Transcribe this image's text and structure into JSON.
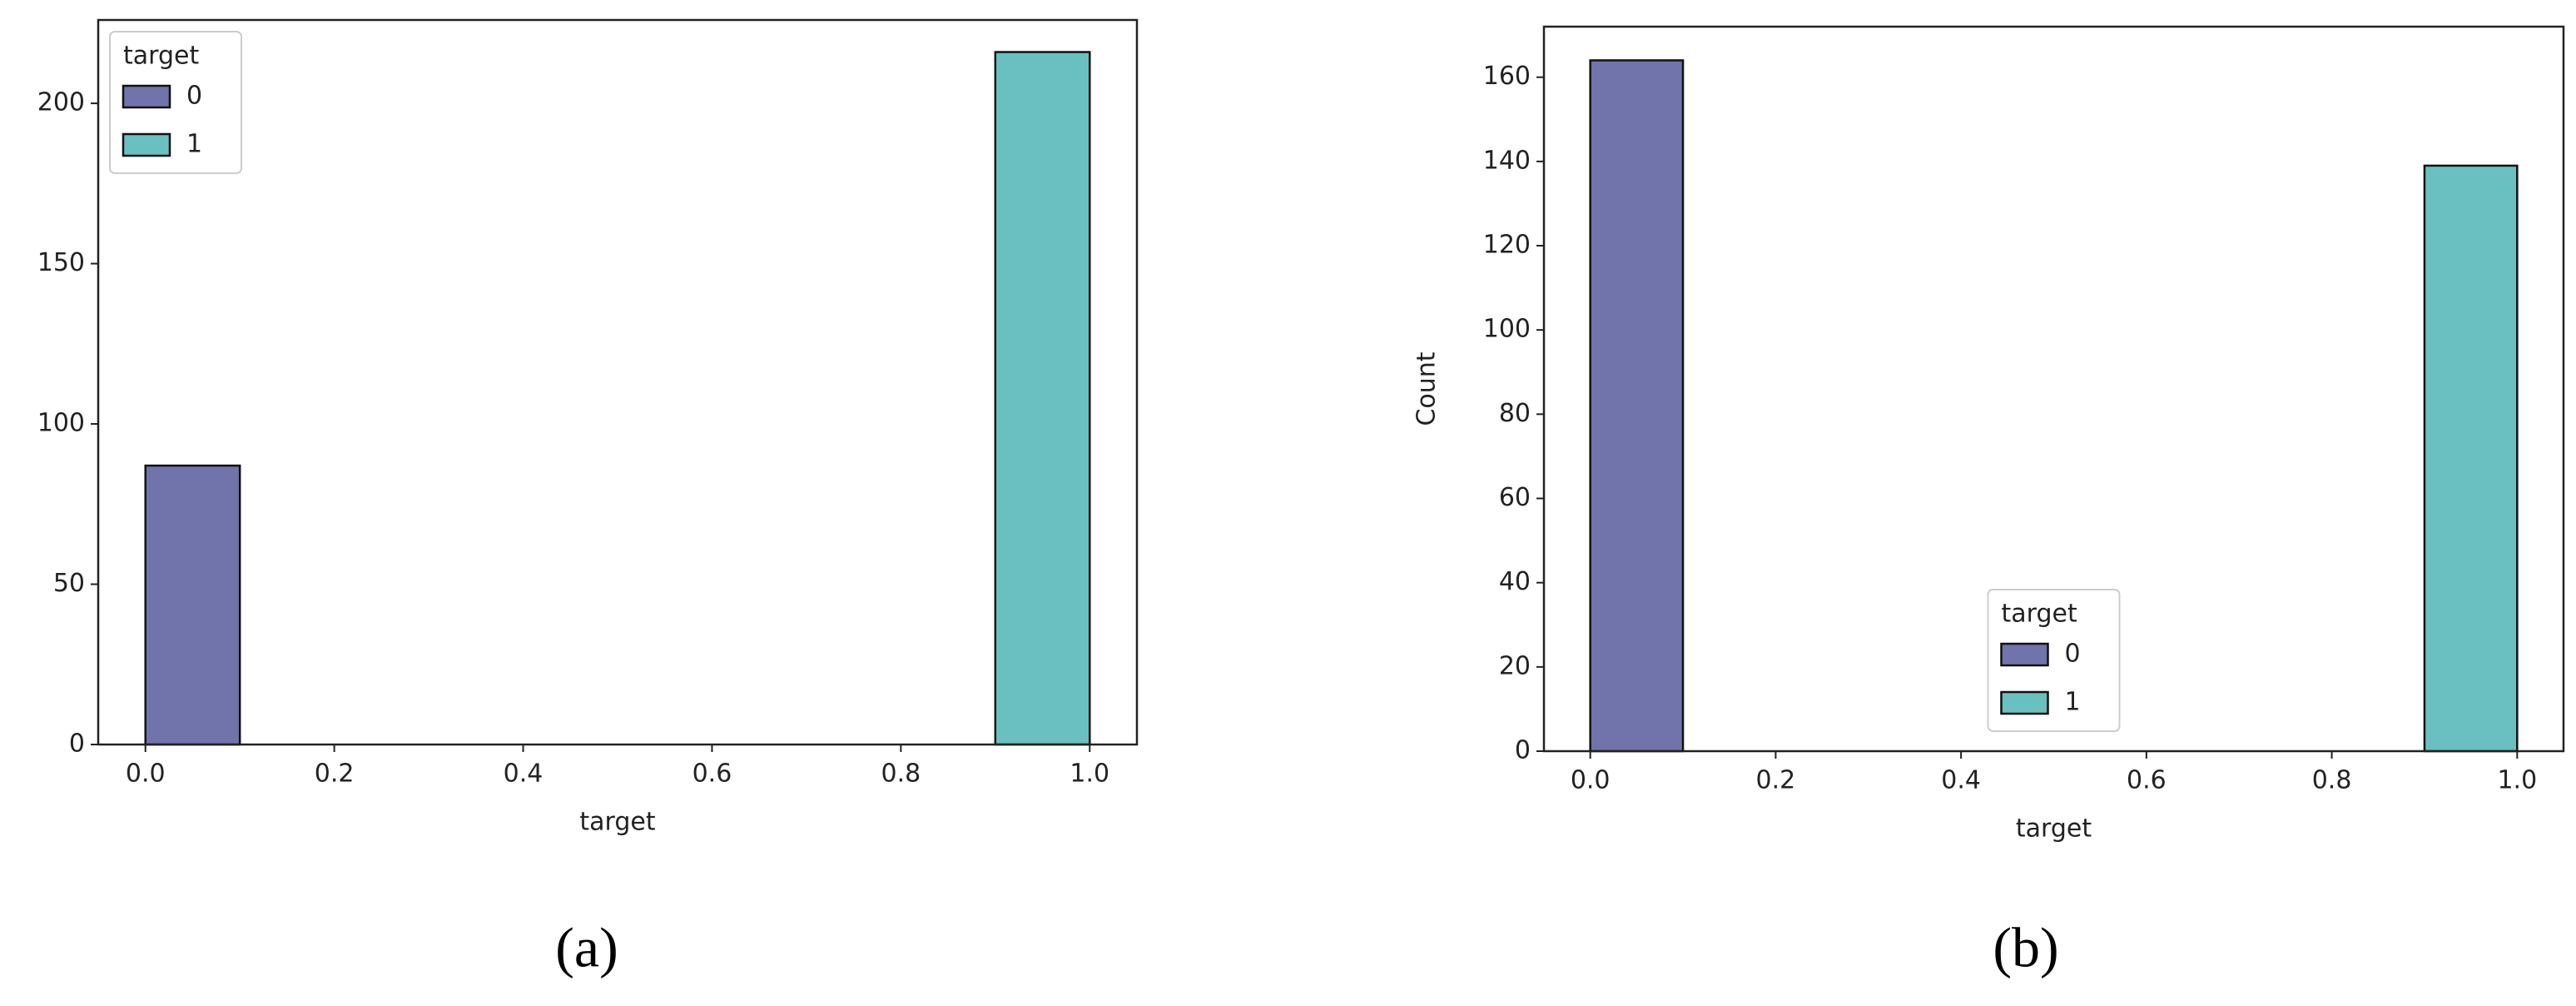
{
  "chart_data": [
    {
      "type": "histogram",
      "caption": "(a)",
      "xlabel": "target",
      "legend_title": "target",
      "legend_loc": "upper left",
      "series": [
        {
          "name": "0",
          "color": "#7074aa",
          "bins": [
            0,
            0.1
          ],
          "values": [
            87
          ]
        },
        {
          "name": "1",
          "color": "#6ac0c0",
          "bins": [
            0.9,
            1.0
          ],
          "values": [
            216
          ]
        }
      ],
      "xlim": [
        -0.05,
        1.05
      ],
      "ylim": [
        0,
        226
      ],
      "xticks": [
        {
          "value": 0,
          "label": "0.0"
        },
        0.2,
        0.4,
        0.6,
        0.8,
        {
          "value": 1,
          "label": "1.0"
        }
      ],
      "yticks": [
        0,
        50,
        100,
        150,
        200
      ]
    },
    {
      "type": "histogram",
      "caption": "(b)",
      "xlabel": "target",
      "ylabel": "Count",
      "legend_title": "target",
      "legend_loc": "lower center",
      "series": [
        {
          "name": "0",
          "color": "#7074aa",
          "bins": [
            0,
            0.1
          ],
          "values": [
            164
          ]
        },
        {
          "name": "1",
          "color": "#6ac0c0",
          "bins": [
            0.9,
            1.0
          ],
          "values": [
            139
          ]
        }
      ],
      "xlim": [
        -0.05,
        1.05
      ],
      "ylim": [
        0,
        172
      ],
      "xticks": [
        {
          "value": 0,
          "label": "0.0"
        },
        0.2,
        0.4,
        0.6,
        0.8,
        {
          "value": 1,
          "label": "1.0"
        }
      ],
      "yticks": [
        0,
        20,
        40,
        60,
        80,
        100,
        120,
        140,
        160
      ]
    }
  ]
}
